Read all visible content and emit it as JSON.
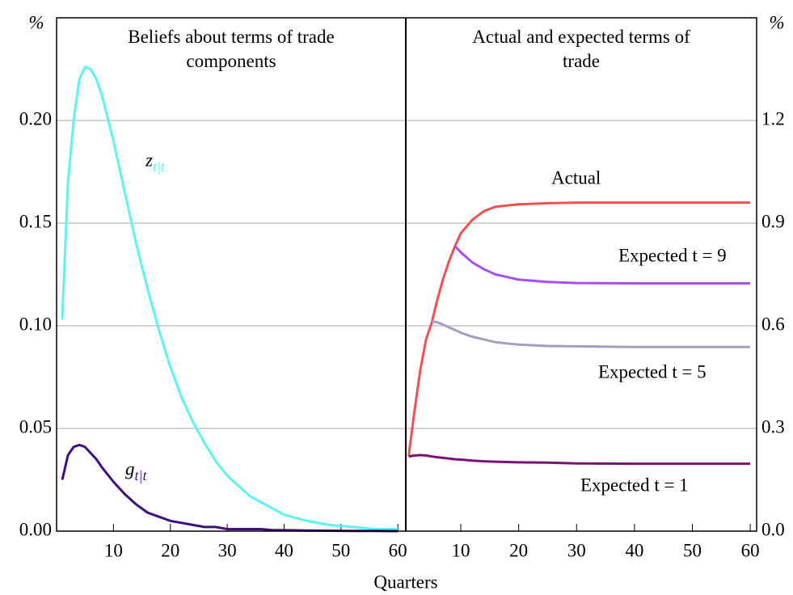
{
  "x_label": "Quarters",
  "chart_data": [
    {
      "type": "line",
      "title": "Beliefs about terms of trade components",
      "y_unit": "%",
      "y_side": "left",
      "x": [
        1,
        2,
        3,
        4,
        5,
        6,
        7,
        8,
        10,
        12,
        14,
        16,
        18,
        20,
        22,
        24,
        26,
        28,
        30,
        32,
        34,
        36,
        38,
        40,
        44,
        48,
        52,
        56,
        60
      ],
      "xlim": [
        0,
        61.4
      ],
      "xticks": [
        10,
        20,
        30,
        40,
        50,
        60
      ],
      "ylim": [
        0,
        0.25
      ],
      "yticks": [
        {
          "value": 0,
          "label": "0.00"
        },
        0.05,
        {
          "value": 0.1,
          "label": "0.10"
        },
        0.15,
        {
          "value": 0.2,
          "label": "0.20"
        }
      ],
      "grid": true,
      "series": [
        {
          "name": "z",
          "subscript": "t|t",
          "color": "#5ef2f2",
          "values": [
            0.103,
            0.17,
            0.2,
            0.22,
            0.226,
            0.225,
            0.22,
            0.212,
            0.19,
            0.165,
            0.14,
            0.118,
            0.098,
            0.08,
            0.065,
            0.053,
            0.043,
            0.034,
            0.027,
            0.022,
            0.017,
            0.014,
            0.011,
            0.008,
            0.005,
            0.003,
            0.002,
            0.001,
            0.001
          ]
        },
        {
          "name": "g",
          "subscript": "t|t",
          "color": "#3f0f7f",
          "values": [
            0.025,
            0.037,
            0.041,
            0.042,
            0.041,
            0.038,
            0.035,
            0.031,
            0.024,
            0.018,
            0.013,
            0.009,
            0.007,
            0.005,
            0.004,
            0.003,
            0.002,
            0.002,
            0.001,
            0.001,
            0.001,
            0.001,
            0.0005,
            0.0005,
            0.0003,
            0.0002,
            0.0001,
            0.0001,
            0
          ]
        }
      ]
    },
    {
      "type": "line",
      "title": "Actual and expected terms of trade",
      "y_unit": "%",
      "y_side": "right",
      "x": [
        1,
        2,
        3,
        4,
        5,
        6,
        7,
        8,
        9,
        10,
        12,
        14,
        16,
        20,
        25,
        30,
        40,
        50,
        60
      ],
      "xlim": [
        0.5,
        61.1
      ],
      "xticks": [
        10,
        20,
        30,
        40,
        50,
        60
      ],
      "ylim": [
        0,
        1.5
      ],
      "yticks": [
        {
          "value": 0,
          "label": "0.0"
        },
        0.3,
        0.6,
        0.9,
        1.2
      ],
      "grid": true,
      "series": [
        {
          "name": "Actual",
          "color": "#f05050",
          "values": [
            0.22,
            0.35,
            0.47,
            0.56,
            0.61,
            0.68,
            0.74,
            0.79,
            0.833,
            0.87,
            0.91,
            0.935,
            0.948,
            0.955,
            0.958,
            0.96,
            0.96,
            0.96,
            0.96
          ]
        },
        {
          "name": "Expected t = 9",
          "color": "#a64ff0",
          "values": [
            null,
            null,
            null,
            null,
            null,
            null,
            null,
            null,
            0.833,
            0.815,
            0.785,
            0.765,
            0.75,
            0.735,
            0.728,
            0.725,
            0.724,
            0.724,
            0.724
          ]
        },
        {
          "name": "Expected t = 5",
          "color": "#a0a0c0",
          "values": [
            null,
            null,
            null,
            null,
            0.613,
            0.61,
            0.603,
            0.595,
            0.588,
            0.58,
            0.568,
            0.56,
            0.552,
            0.545,
            0.541,
            0.54,
            0.538,
            0.538,
            0.538
          ]
        },
        {
          "name": "Expected t = 1",
          "color": "#7a1078",
          "values": [
            0.218,
            0.221,
            0.222,
            0.221,
            0.218,
            0.216,
            0.214,
            0.212,
            0.21,
            0.209,
            0.206,
            0.204,
            0.203,
            0.201,
            0.2,
            0.198,
            0.197,
            0.197,
            0.197
          ]
        }
      ]
    }
  ]
}
